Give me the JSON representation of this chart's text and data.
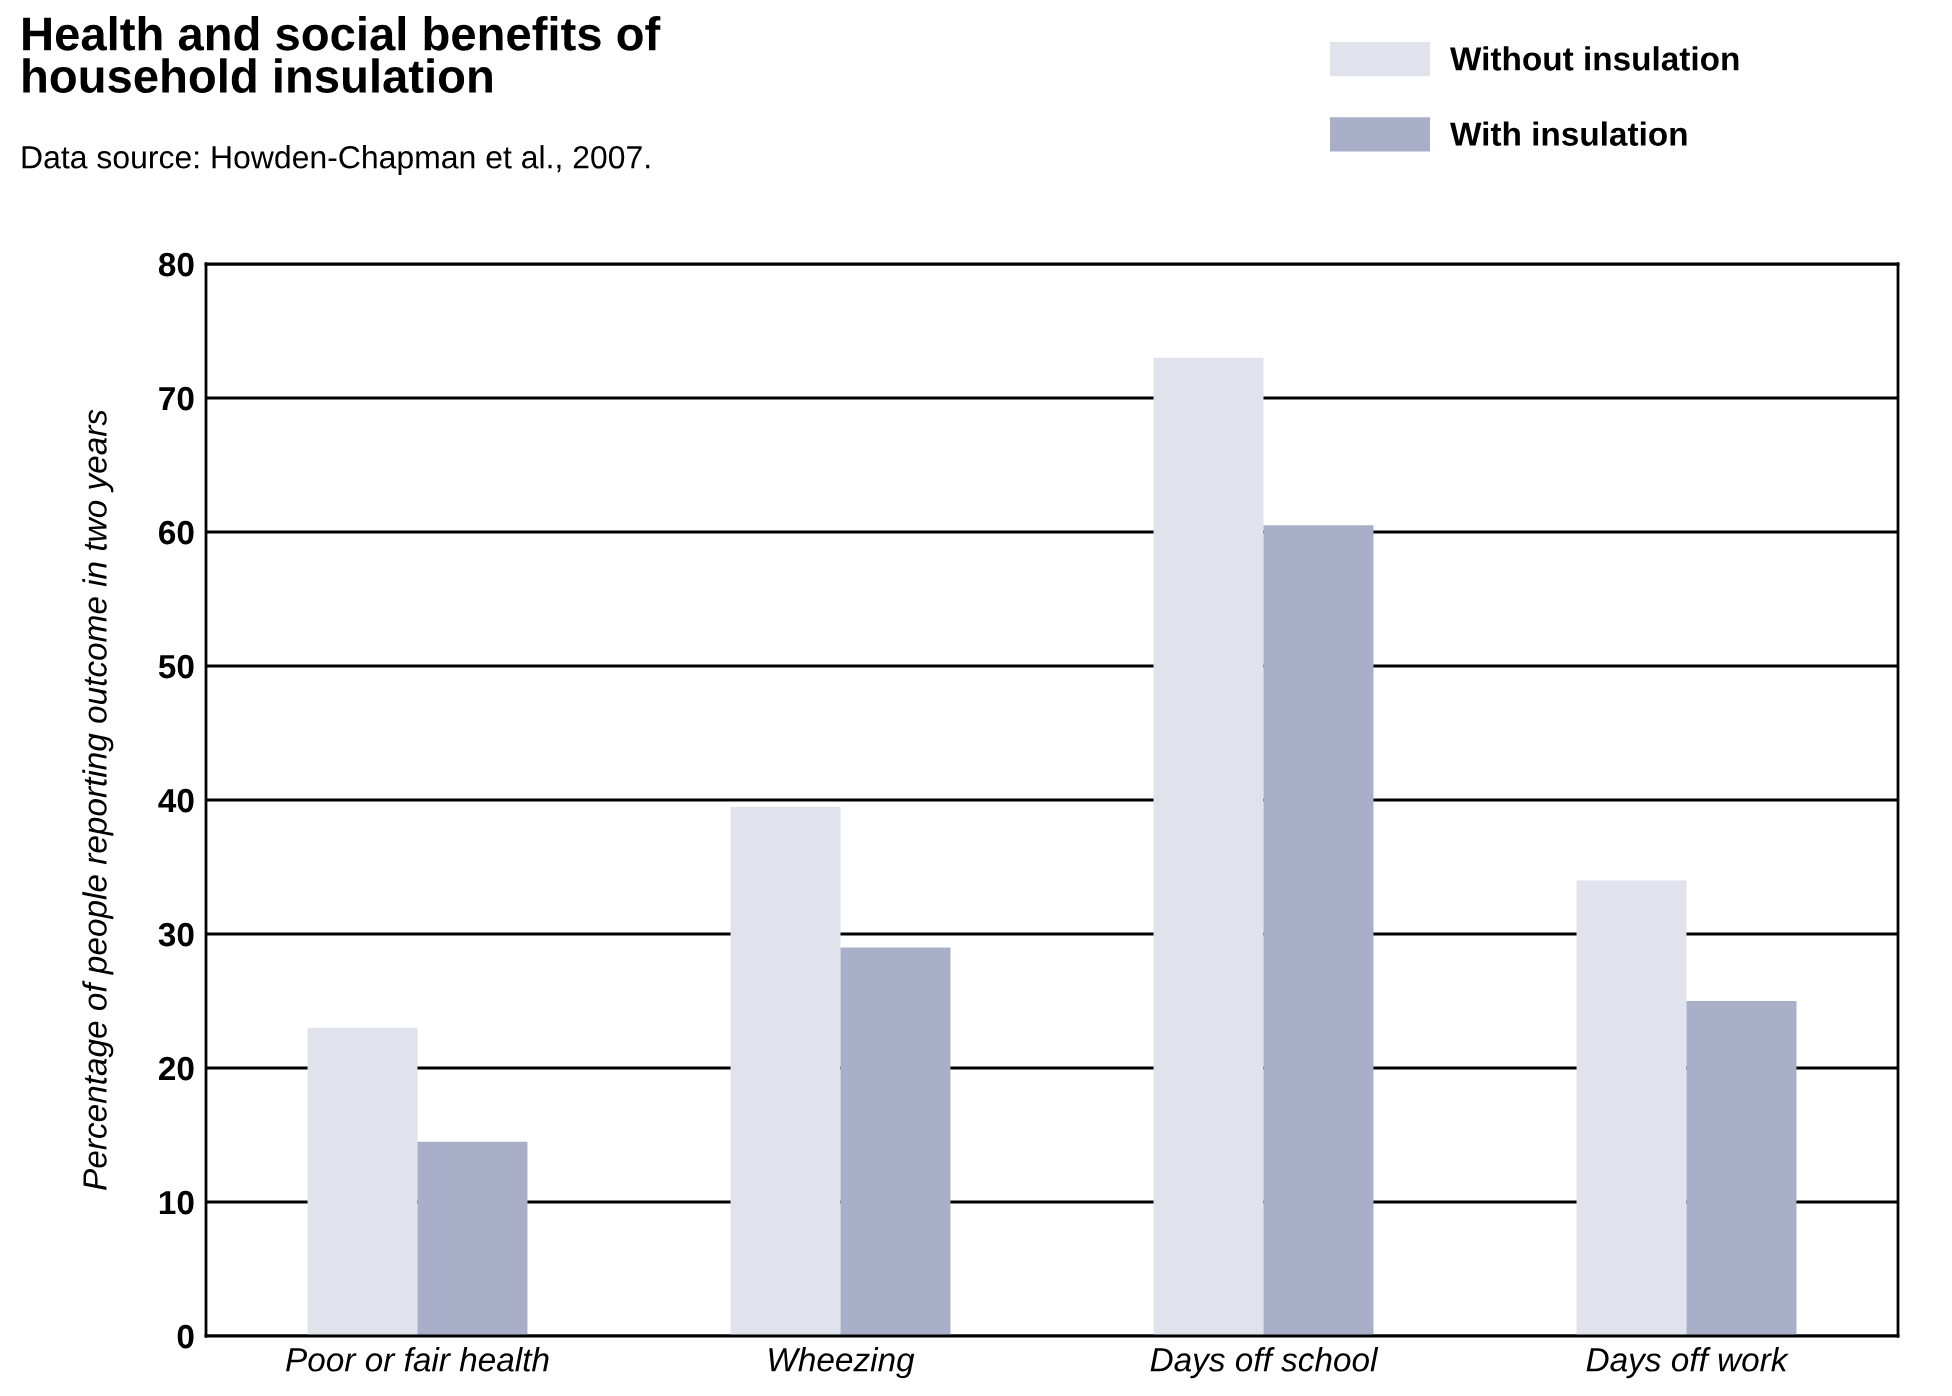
{
  "chart_data": {
    "type": "bar",
    "title": "Health and social benefits of\nhousehold insulation",
    "subtitle": "Data source: Howden-Chapman et al., 2007.",
    "ylabel": "Percentage of people reporting outcome in two years",
    "categories": [
      "Poor or fair health",
      "Wheezing",
      "Days off school",
      "Days off work"
    ],
    "series": [
      {
        "name": "Without insulation",
        "color": "#e0e2ec",
        "values": [
          23,
          39.5,
          73,
          34
        ]
      },
      {
        "name": "With insulation",
        "color": "#a9afc8",
        "values": [
          14.5,
          29,
          60.5,
          25
        ]
      }
    ],
    "ylim": [
      0,
      80
    ],
    "yticks": [
      0,
      10,
      20,
      30,
      40,
      50,
      60,
      70,
      80
    ],
    "grid": "y",
    "legend": "top right"
  }
}
